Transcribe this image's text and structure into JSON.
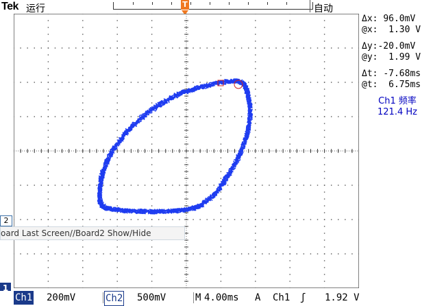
{
  "header": {
    "brand": "Tek",
    "run_state": "运行",
    "trigger_mode": "自动",
    "trigger_marker": "T"
  },
  "trace": {
    "color": "#1e3cf0",
    "cursor_color": "#d02020"
  },
  "readout": {
    "dx_label": "Δx:",
    "dx_value": "96.0mV",
    "atx_label": "@x:",
    "atx_value": "1.30 V",
    "dy_label": "Δy:",
    "dy_value": "-20.0mV",
    "aty_label": "@y:",
    "aty_value": "1.99 V",
    "dt_label": "Δt:",
    "dt_value": "-7.68ms",
    "att_label": "@t:",
    "att_value": "6.75ms",
    "freq_label": "Ch1 频率",
    "freq_value": "121.4 Hz"
  },
  "board": {
    "text": "oard Last Screen//Board2 Show/Hide"
  },
  "markers": {
    "ch2": "2",
    "ch1": "1"
  },
  "bottom": {
    "ch1_label": "Ch1",
    "ch1_scale": "200mV",
    "ch2_label": "Ch2",
    "ch2_scale": "500mV",
    "timebase_label": "M",
    "timebase_value": "4.00ms",
    "acq_label": "A",
    "trig_source": "Ch1",
    "trig_slope": "ʃ",
    "trig_level": "1.92 V"
  }
}
